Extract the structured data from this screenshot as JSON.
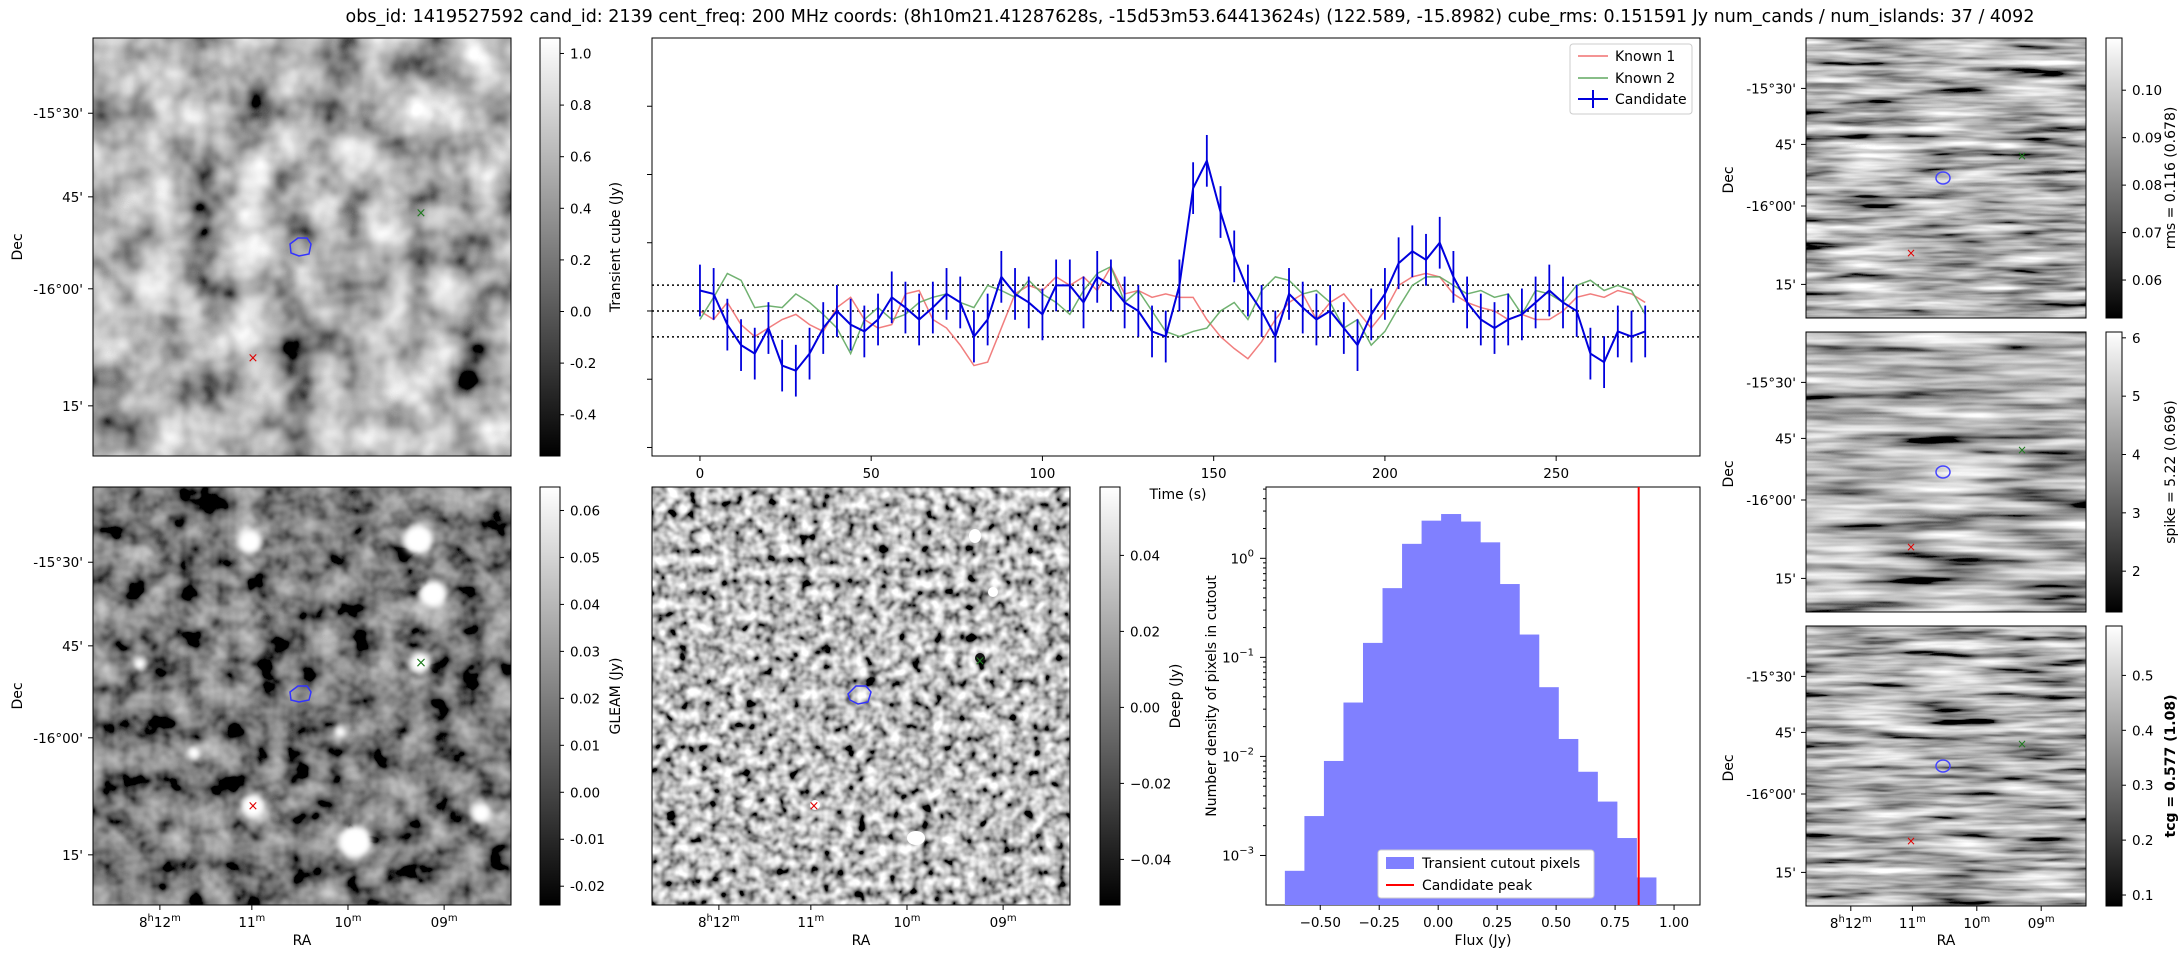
{
  "title": "obs_id: 1419527592 cand_id: 2139 cent_freq: 200 MHz coords: (8h10m21.41287628s, -15d53m53.64413624s) (122.589, -15.8982) cube_rms: 0.151591 Jy num_cands / num_islands: 37 / 4092",
  "sky_axes": {
    "xlabel": "RA",
    "ylabel": "Dec",
    "ra_ticks": [
      {
        "main": "8",
        "sup1": "h",
        "mid": "12",
        "sup2": "m"
      },
      {
        "main": "11",
        "sup2": "m"
      },
      {
        "main": "10",
        "sup2": "m"
      },
      {
        "main": "09",
        "sup2": "m"
      }
    ],
    "dec_ticks": [
      "-15°30'",
      "45'",
      "-16°00'",
      "15'"
    ]
  },
  "panels": {
    "transient": {
      "colorbar_label": "Transient cube (Jy)",
      "ticks": [
        "1.0",
        "0.8",
        "0.6",
        "0.4",
        "0.2",
        "0.0",
        "-0.2",
        "-0.4"
      ],
      "range": [
        -0.56,
        1.06
      ]
    },
    "gleam": {
      "colorbar_label": "GLEAM (Jy)",
      "ticks": [
        "0.06",
        "0.05",
        "0.04",
        "0.03",
        "0.02",
        "0.01",
        "0.00",
        "-0.01",
        "-0.02"
      ],
      "range": [
        -0.024,
        0.065
      ]
    },
    "deep": {
      "colorbar_label": "Deep (Jy)",
      "ticks": [
        "0.04",
        "0.02",
        "0.00",
        "−0.02",
        "−0.04"
      ],
      "range": [
        -0.052,
        0.058
      ]
    },
    "rms": {
      "colorbar_label": "rms = 0.116 (0.678)",
      "ticks": [
        "0.10",
        "0.09",
        "0.08",
        "0.07",
        "0.06"
      ],
      "range": [
        0.052,
        0.111
      ]
    },
    "spike": {
      "colorbar_label": "spike = 5.22 (0.696)",
      "ticks": [
        "6",
        "5",
        "4",
        "3",
        "2"
      ],
      "range": [
        1.3,
        6.1
      ]
    },
    "tcg": {
      "colorbar_label": "tcg = 0.577 (1.08)",
      "ticks": [
        "0.5",
        "0.4",
        "0.3",
        "0.2",
        "0.1"
      ],
      "range": [
        0.08,
        0.59
      ]
    }
  },
  "chart_data": [
    {
      "type": "line",
      "name": "lightcurve",
      "xlabel": "Time (s)",
      "ylabel": "",
      "xlim": [
        -14,
        292
      ],
      "ylim": [
        -0.85,
        1.6
      ],
      "xticks": [
        0,
        50,
        100,
        150,
        200,
        250
      ],
      "hlines": [
        -0.1516,
        0.0,
        0.1516
      ],
      "legend_position": "top-right",
      "x": [
        0,
        4,
        8,
        12,
        16,
        20,
        24,
        28,
        32,
        36,
        40,
        44,
        48,
        52,
        56,
        60,
        64,
        68,
        72,
        76,
        80,
        84,
        88,
        92,
        96,
        100,
        104,
        108,
        112,
        116,
        120,
        124,
        128,
        132,
        136,
        140,
        144,
        148,
        152,
        156,
        160,
        164,
        168,
        172,
        176,
        180,
        184,
        188,
        192,
        196,
        200,
        204,
        208,
        212,
        216,
        220,
        224,
        228,
        232,
        236,
        240,
        244,
        248,
        252,
        256,
        260,
        264,
        268,
        272,
        276
      ],
      "series": [
        {
          "name": "Known 1",
          "color": "#f07070",
          "values": [
            0.0,
            -0.05,
            0.05,
            -0.08,
            -0.15,
            -0.1,
            -0.05,
            -0.02,
            -0.08,
            -0.12,
            0.02,
            0.08,
            -0.05,
            -0.1,
            -0.08,
            0.1,
            0.12,
            -0.05,
            -0.1,
            -0.2,
            -0.32,
            -0.3,
            -0.1,
            0.1,
            0.15,
            0.12,
            0.2,
            0.15,
            0.2,
            0.12,
            0.26,
            0.1,
            0.12,
            0.08,
            0.1,
            0.08,
            0.08,
            -0.05,
            -0.15,
            -0.22,
            -0.28,
            -0.18,
            -0.05,
            0.05,
            0.1,
            -0.05,
            0.05,
            0.1,
            0.0,
            -0.1,
            0.0,
            0.15,
            0.2,
            0.22,
            0.2,
            0.1,
            0.05,
            0.02,
            0.0,
            -0.05,
            -0.02,
            -0.05,
            -0.05,
            0.0,
            0.08,
            0.1,
            0.08,
            0.12,
            0.1,
            0.05
          ]
        },
        {
          "name": "Known 2",
          "color": "#60a860",
          "values": [
            -0.05,
            0.08,
            0.22,
            0.18,
            0.02,
            0.03,
            0.02,
            0.1,
            0.05,
            -0.02,
            -0.1,
            -0.25,
            -0.05,
            0.02,
            -0.05,
            -0.02,
            0.05,
            0.08,
            0.1,
            0.05,
            0.02,
            0.15,
            0.12,
            0.08,
            0.18,
            0.1,
            0.05,
            -0.02,
            0.12,
            0.22,
            0.26,
            0.05,
            0.12,
            0.0,
            -0.12,
            -0.15,
            -0.12,
            -0.1,
            0.0,
            0.05,
            -0.05,
            0.12,
            0.2,
            0.18,
            0.1,
            0.12,
            0.05,
            -0.1,
            -0.05,
            -0.2,
            -0.12,
            0.02,
            0.15,
            0.2,
            0.2,
            0.15,
            0.1,
            0.12,
            0.08,
            0.1,
            -0.02,
            0.12,
            0.1,
            0.05,
            0.15,
            0.18,
            0.12,
            0.15,
            0.12,
            -0.02
          ]
        },
        {
          "name": "Candidate",
          "color": "#0000dd",
          "values": [
            0.12,
            0.1,
            -0.08,
            -0.2,
            -0.25,
            -0.1,
            -0.32,
            -0.35,
            -0.25,
            -0.1,
            0.0,
            -0.08,
            -0.12,
            -0.05,
            0.08,
            0.02,
            -0.05,
            0.02,
            0.1,
            0.05,
            -0.15,
            -0.05,
            0.2,
            0.1,
            0.05,
            -0.02,
            0.15,
            0.15,
            0.05,
            0.2,
            0.15,
            0.05,
            0.0,
            -0.12,
            -0.15,
            0.15,
            0.72,
            0.88,
            0.58,
            0.32,
            0.12,
            0.0,
            -0.15,
            0.1,
            0.02,
            -0.05,
            0.0,
            -0.1,
            -0.2,
            -0.02,
            0.1,
            0.28,
            0.35,
            0.3,
            0.4,
            0.2,
            0.05,
            -0.05,
            -0.1,
            -0.05,
            -0.02,
            0.05,
            0.12,
            0.05,
            0.0,
            -0.25,
            -0.3,
            -0.12,
            -0.15,
            -0.12
          ]
        }
      ]
    },
    {
      "type": "bar",
      "name": "flux_histogram",
      "xlabel": "Flux (Jy)",
      "ylabel": "Number density of pixels in cutout",
      "xlim": [
        -0.73,
        1.11
      ],
      "ylim_log10": [
        -3.5,
        0.72
      ],
      "yscale": "log",
      "xticks": [
        "−0.50",
        "−0.25",
        "0.00",
        "0.25",
        "0.50",
        "0.75",
        "1.00"
      ],
      "xtick_values": [
        -0.5,
        -0.25,
        0.0,
        0.25,
        0.5,
        0.75,
        1.0
      ],
      "yticks": [
        {
          "base": "10",
          "exp": "0"
        },
        {
          "base": "10",
          "exp": "−1"
        },
        {
          "base": "10",
          "exp": "−2"
        },
        {
          "base": "10",
          "exp": "−3"
        }
      ],
      "ytick_values": [
        0,
        -1,
        -2,
        -3
      ],
      "bin_edges": [
        -0.65,
        -0.5672,
        -0.4844,
        -0.4016,
        -0.3188,
        -0.236,
        -0.1532,
        -0.0704,
        0.0124,
        0.0952,
        0.178,
        0.2608,
        0.3436,
        0.4264,
        0.5092,
        0.592,
        0.6748,
        0.7576,
        0.8404,
        0.9232,
        1.006
      ],
      "values": [
        0.0007,
        0.0025,
        0.009,
        0.035,
        0.14,
        0.5,
        1.4,
        2.4,
        2.8,
        2.35,
        1.45,
        0.55,
        0.17,
        0.05,
        0.015,
        0.007,
        0.0035,
        0.0015,
        0.0006,
        0.00025
      ],
      "bar_color": "#8080ff",
      "vline": 0.85,
      "vline_color": "#ff0000",
      "legend_position": "bottom-right",
      "legend": [
        "Transient cutout pixels",
        "Candidate peak"
      ]
    }
  ]
}
